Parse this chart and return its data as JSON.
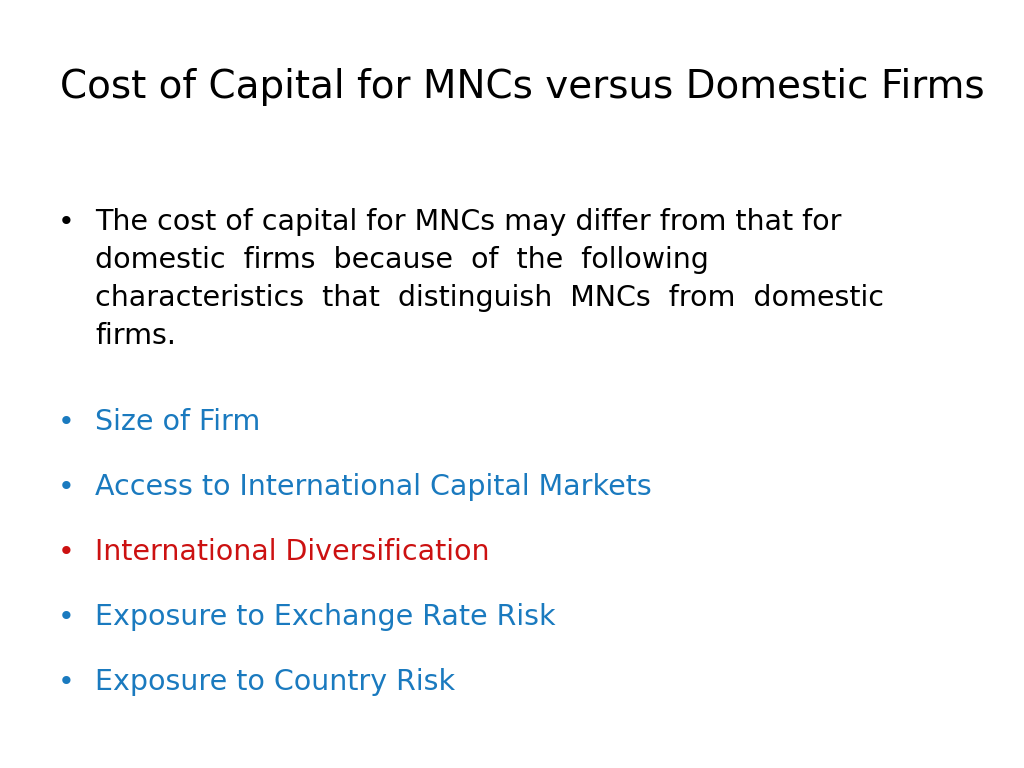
{
  "title": "Cost of Capital for MNCs versus Domestic Firms",
  "title_fontsize": 28,
  "title_color": "#000000",
  "background_color": "#ffffff",
  "bullet_items": [
    {
      "text": "The cost of capital for MNCs may differ from that for\ndomestic  firms  because  of  the  following\ncharacteristics  that  distinguish  MNCs  from  domestic\nfirms.",
      "color": "#000000",
      "fontsize": 20.5,
      "bullet_color": "#000000"
    },
    {
      "text": "Size of Firm",
      "color": "#1A7ABF",
      "fontsize": 20.5,
      "bullet_color": "#1A7ABF"
    },
    {
      "text": "Access to International Capital Markets",
      "color": "#1A7ABF",
      "fontsize": 20.5,
      "bullet_color": "#1A7ABF"
    },
    {
      "text": "International Diversification",
      "color": "#CC1111",
      "fontsize": 20.5,
      "bullet_color": "#CC1111"
    },
    {
      "text": "Exposure to Exchange Rate Risk",
      "color": "#1A7ABF",
      "fontsize": 20.5,
      "bullet_color": "#1A7ABF"
    },
    {
      "text": "Exposure to Country Risk",
      "color": "#1A7ABF",
      "fontsize": 20.5,
      "bullet_color": "#1A7ABF"
    }
  ]
}
